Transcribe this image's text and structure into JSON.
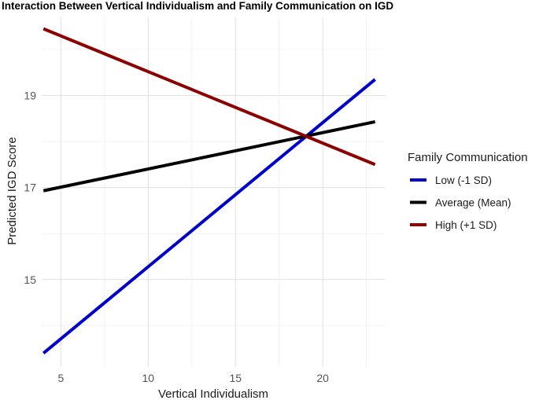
{
  "chart_data": {
    "type": "line",
    "title": "Interaction Between Vertical Individualism and Family Communication on IGD",
    "xlabel": "Vertical Individualism",
    "ylabel": "Predicted IGD Score",
    "xlim": [
      3.9,
      23.6
    ],
    "ylim": [
      13.1,
      20.7
    ],
    "x_ticks": [
      5,
      10,
      15,
      20
    ],
    "y_ticks": [
      15,
      17,
      19
    ],
    "x_ticks_minor": [
      7.5,
      12.5,
      17.5,
      22.5
    ],
    "y_ticks_minor": [
      14,
      16,
      18,
      20
    ],
    "grid": true,
    "legend": {
      "title": "Family Communication",
      "position": "right"
    },
    "series": [
      {
        "name": "Low (-1 SD)",
        "color": "#0000cd",
        "x": [
          4,
          23
        ],
        "y": [
          13.4,
          19.35
        ]
      },
      {
        "name": "Average (Mean)",
        "color": "#000000",
        "x": [
          4,
          23
        ],
        "y": [
          16.93,
          18.43
        ]
      },
      {
        "name": "High (+1 SD)",
        "color": "#8b0000",
        "x": [
          4,
          23
        ],
        "y": [
          20.45,
          17.5
        ]
      }
    ]
  }
}
